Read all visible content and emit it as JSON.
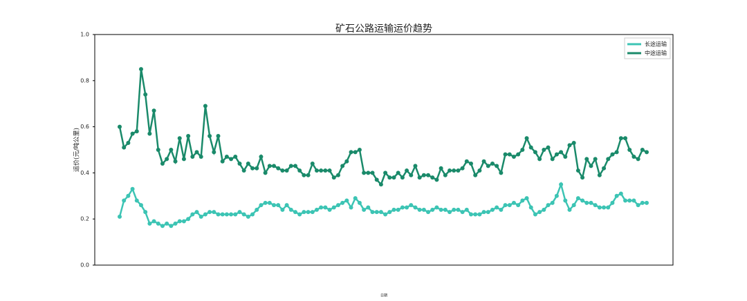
{
  "chart_data": {
    "type": "line",
    "title": "矿石公路运输运价趋势",
    "y_label": "运价(元/吨公里)",
    "x_label": "日期",
    "categories": [
      null,
      null,
      null,
      null,
      null,
      null,
      null,
      null,
      null,
      null,
      null,
      null,
      null,
      null,
      null,
      null,
      null,
      null,
      null,
      null,
      null,
      null,
      null,
      null,
      null,
      null,
      null,
      null,
      null,
      null,
      null,
      null,
      null,
      null,
      null,
      null,
      null,
      null,
      null,
      null,
      null,
      null,
      null,
      null,
      null,
      null,
      null,
      null,
      null,
      null,
      null,
      null,
      null,
      null,
      null,
      null,
      null,
      null,
      null,
      null,
      null,
      null,
      null,
      null,
      null,
      null,
      null,
      null,
      null,
      null,
      null,
      null,
      null,
      null,
      null,
      null,
      null,
      null,
      null,
      null,
      null,
      null,
      null,
      null,
      null,
      null,
      null,
      null,
      null,
      null,
      null,
      null,
      null,
      null,
      null,
      null,
      null,
      null,
      null,
      null,
      null,
      null,
      null,
      null,
      null,
      null,
      null,
      null,
      null,
      null,
      null,
      null,
      null,
      null,
      null,
      null,
      null,
      null,
      null,
      null,
      null,
      null,
      null,
      null
    ],
    "series": [
      {
        "name": "长途运输",
        "color": "#3cc4b4",
        "values": [
          0.21,
          0.28,
          0.3,
          0.33,
          0.28,
          0.26,
          0.23,
          0.18,
          0.19,
          0.18,
          0.17,
          0.18,
          0.17,
          0.18,
          0.19,
          0.19,
          0.2,
          0.22,
          0.23,
          0.21,
          0.22,
          0.23,
          0.23,
          0.22,
          0.22,
          0.22,
          0.22,
          0.22,
          0.23,
          0.22,
          0.21,
          0.22,
          0.24,
          0.26,
          0.27,
          0.27,
          0.26,
          0.26,
          0.24,
          0.26,
          0.24,
          0.23,
          0.22,
          0.23,
          0.23,
          0.23,
          0.24,
          0.25,
          0.25,
          0.24,
          0.25,
          0.26,
          0.27,
          0.28,
          0.25,
          0.29,
          0.27,
          0.24,
          0.25,
          0.23,
          0.23,
          0.23,
          0.22,
          0.23,
          0.24,
          0.24,
          0.25,
          0.25,
          0.26,
          0.25,
          0.24,
          0.24,
          0.23,
          0.24,
          0.25,
          0.24,
          0.24,
          0.23,
          0.24,
          0.24,
          0.23,
          0.24,
          0.22,
          0.22,
          0.22,
          0.23,
          0.23,
          0.24,
          0.25,
          0.24,
          0.26,
          0.26,
          0.27,
          0.26,
          0.28,
          0.29,
          0.25,
          0.22,
          0.23,
          0.24,
          0.26,
          0.27,
          0.3,
          0.35,
          0.28,
          0.24,
          0.26,
          0.29,
          0.28,
          0.27,
          0.27,
          0.26,
          0.25,
          0.25,
          0.25,
          0.27,
          0.3,
          0.31,
          0.28,
          0.28,
          0.28,
          0.26,
          0.27,
          0.27
        ]
      },
      {
        "name": "中途运输",
        "color": "#1a8a6a",
        "values": [
          0.6,
          0.51,
          0.53,
          0.57,
          0.58,
          0.85,
          0.74,
          0.57,
          0.67,
          0.5,
          0.44,
          0.46,
          0.5,
          0.45,
          0.55,
          0.46,
          0.56,
          0.47,
          0.49,
          0.47,
          0.69,
          0.56,
          0.49,
          0.56,
          0.45,
          0.47,
          0.46,
          0.47,
          0.44,
          0.41,
          0.44,
          0.42,
          0.42,
          0.47,
          0.4,
          0.43,
          0.43,
          0.42,
          0.41,
          0.41,
          0.43,
          0.43,
          0.41,
          0.39,
          0.39,
          0.44,
          0.41,
          0.41,
          0.41,
          0.41,
          0.38,
          0.39,
          0.43,
          0.45,
          0.49,
          0.49,
          0.5,
          0.4,
          0.4,
          0.4,
          0.37,
          0.35,
          0.4,
          0.38,
          0.38,
          0.4,
          0.38,
          0.41,
          0.39,
          0.43,
          0.38,
          0.39,
          0.39,
          0.38,
          0.37,
          0.42,
          0.39,
          0.41,
          0.41,
          0.41,
          0.42,
          0.45,
          0.44,
          0.39,
          0.41,
          0.45,
          0.43,
          0.44,
          0.43,
          0.4,
          0.48,
          0.48,
          0.47,
          0.48,
          0.5,
          0.55,
          0.51,
          0.49,
          0.46,
          0.5,
          0.51,
          0.46,
          0.48,
          0.49,
          0.47,
          0.52,
          0.53,
          0.41,
          0.38,
          0.46,
          0.43,
          0.46,
          0.39,
          0.42,
          0.46,
          0.48,
          0.49,
          0.55,
          0.55,
          0.5,
          0.47,
          0.46,
          0.5,
          0.49
        ]
      }
    ],
    "ylim": [
      0,
      1
    ],
    "yticks": [
      {
        "value": 0,
        "label": "0.0"
      },
      0.2,
      0.4,
      0.6,
      0.8,
      {
        "value": 1,
        "label": "1.0"
      }
    ],
    "legend": "upper right"
  }
}
